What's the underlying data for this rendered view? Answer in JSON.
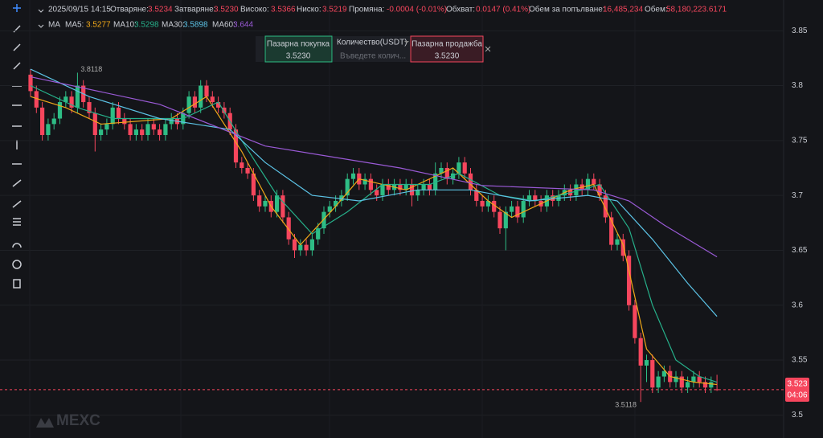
{
  "header": {
    "time": "2025/09/15 14:15",
    "fields": [
      {
        "label": "Отваряне:",
        "value": "3.5234"
      },
      {
        "label": "Затваряне:",
        "value": "3.5230"
      },
      {
        "label": "Високо:",
        "value": "3.5366"
      },
      {
        "label": "Ниско:",
        "value": "3.5219"
      },
      {
        "label": "Промяна:",
        "value": "-0.0004 (-0.01%)"
      },
      {
        "label": "Обхват:",
        "value": "0.0147 (0.41%)"
      },
      {
        "label": "Обем за попълване:",
        "value": "16,485,234"
      },
      {
        "label": "Обем:",
        "value": "58,180,223.6171"
      }
    ]
  },
  "ma_title": "MA",
  "trade_widget": {
    "buy_label": "Пазарна покупка",
    "buy_price": "3.5230",
    "qty_label": "Количество(USDT)",
    "qty_placeholder": "Въведете колич...",
    "sell_label": "Пазарна продажба",
    "sell_price": "3.5230"
  },
  "logo": "MEXC",
  "chart_data": {
    "type": "candlestick",
    "up_color": "#2ebd85",
    "down_color": "#f6465d",
    "ylim": [
      3.49,
      3.878
    ],
    "yticks": [
      3.85,
      3.8,
      3.75,
      3.7,
      3.65,
      3.6,
      3.55,
      3.5
    ],
    "grid": true,
    "candles": [
      [
        3.81,
        3.815,
        3.79,
        3.795
      ],
      [
        3.795,
        3.8,
        3.775,
        3.78
      ],
      [
        3.78,
        3.785,
        3.75,
        3.755
      ],
      [
        3.755,
        3.77,
        3.75,
        3.765
      ],
      [
        3.765,
        3.775,
        3.76,
        3.77
      ],
      [
        3.77,
        3.79,
        3.765,
        3.785
      ],
      [
        3.785,
        3.795,
        3.78,
        3.79
      ],
      [
        3.79,
        3.795,
        3.775,
        3.78
      ],
      [
        3.78,
        3.8118,
        3.775,
        3.8
      ],
      [
        3.8,
        3.805,
        3.78,
        3.785
      ],
      [
        3.785,
        3.79,
        3.77,
        3.775
      ],
      [
        3.775,
        3.78,
        3.74,
        3.755
      ],
      [
        3.755,
        3.765,
        3.75,
        3.76
      ],
      [
        3.76,
        3.77,
        3.755,
        3.765
      ],
      [
        3.765,
        3.785,
        3.76,
        3.78
      ],
      [
        3.78,
        3.785,
        3.765,
        3.77
      ],
      [
        3.77,
        3.775,
        3.76,
        3.765
      ],
      [
        3.765,
        3.77,
        3.75,
        3.755
      ],
      [
        3.755,
        3.765,
        3.75,
        3.76
      ],
      [
        3.76,
        3.765,
        3.75,
        3.755
      ],
      [
        3.755,
        3.77,
        3.75,
        3.765
      ],
      [
        3.765,
        3.77,
        3.755,
        3.76
      ],
      [
        3.76,
        3.765,
        3.75,
        3.755
      ],
      [
        3.755,
        3.77,
        3.75,
        3.765
      ],
      [
        3.765,
        3.775,
        3.76,
        3.77
      ],
      [
        3.77,
        3.775,
        3.76,
        3.765
      ],
      [
        3.765,
        3.78,
        3.76,
        3.775
      ],
      [
        3.775,
        3.795,
        3.77,
        3.79
      ],
      [
        3.79,
        3.795,
        3.775,
        3.78
      ],
      [
        3.78,
        3.805,
        3.775,
        3.8
      ],
      [
        3.8,
        3.805,
        3.785,
        3.79
      ],
      [
        3.79,
        3.795,
        3.78,
        3.785
      ],
      [
        3.785,
        3.79,
        3.775,
        3.78
      ],
      [
        3.78,
        3.785,
        3.77,
        3.775
      ],
      [
        3.775,
        3.78,
        3.755,
        3.76
      ],
      [
        3.76,
        3.765,
        3.725,
        3.73
      ],
      [
        3.73,
        3.735,
        3.72,
        3.725
      ],
      [
        3.725,
        3.73,
        3.715,
        3.72
      ],
      [
        3.72,
        3.725,
        3.695,
        3.7
      ],
      [
        3.7,
        3.705,
        3.685,
        3.69
      ],
      [
        3.69,
        3.7,
        3.685,
        3.695
      ],
      [
        3.695,
        3.7,
        3.68,
        3.685
      ],
      [
        3.685,
        3.705,
        3.68,
        3.7
      ],
      [
        3.7,
        3.705,
        3.675,
        3.68
      ],
      [
        3.68,
        3.685,
        3.655,
        3.66
      ],
      [
        3.66,
        3.665,
        3.643,
        3.65
      ],
      [
        3.65,
        3.66,
        3.645,
        3.655
      ],
      [
        3.655,
        3.66,
        3.645,
        3.65
      ],
      [
        3.65,
        3.665,
        3.645,
        3.66
      ],
      [
        3.66,
        3.675,
        3.655,
        3.67
      ],
      [
        3.67,
        3.69,
        3.665,
        3.685
      ],
      [
        3.685,
        3.695,
        3.68,
        3.69
      ],
      [
        3.69,
        3.7,
        3.685,
        3.695
      ],
      [
        3.695,
        3.705,
        3.69,
        3.7
      ],
      [
        3.7,
        3.72,
        3.695,
        3.715
      ],
      [
        3.715,
        3.725,
        3.71,
        3.72
      ],
      [
        3.72,
        3.725,
        3.705,
        3.71
      ],
      [
        3.71,
        3.72,
        3.705,
        3.715
      ],
      [
        3.715,
        3.72,
        3.7,
        3.705
      ],
      [
        3.705,
        3.71,
        3.695,
        3.7
      ],
      [
        3.7,
        3.715,
        3.695,
        3.71
      ],
      [
        3.71,
        3.715,
        3.7,
        3.705
      ],
      [
        3.705,
        3.715,
        3.7,
        3.71
      ],
      [
        3.71,
        3.715,
        3.7,
        3.705
      ],
      [
        3.705,
        3.715,
        3.7,
        3.71
      ],
      [
        3.71,
        3.715,
        3.69,
        3.7
      ],
      [
        3.7,
        3.71,
        3.695,
        3.705
      ],
      [
        3.705,
        3.715,
        3.7,
        3.71
      ],
      [
        3.71,
        3.715,
        3.7,
        3.705
      ],
      [
        3.705,
        3.73,
        3.7,
        3.72
      ],
      [
        3.72,
        3.73,
        3.715,
        3.725
      ],
      [
        3.725,
        3.73,
        3.71,
        3.715
      ],
      [
        3.715,
        3.725,
        3.71,
        3.72
      ],
      [
        3.72,
        3.735,
        3.715,
        3.73
      ],
      [
        3.73,
        3.735,
        3.715,
        3.72
      ],
      [
        3.72,
        3.725,
        3.7,
        3.705
      ],
      [
        3.705,
        3.71,
        3.69,
        3.695
      ],
      [
        3.695,
        3.7,
        3.685,
        3.69
      ],
      [
        3.69,
        3.7,
        3.685,
        3.695
      ],
      [
        3.695,
        3.7,
        3.68,
        3.685
      ],
      [
        3.685,
        3.69,
        3.665,
        3.67
      ],
      [
        3.67,
        3.69,
        3.65,
        3.685
      ],
      [
        3.685,
        3.695,
        3.68,
        3.69
      ],
      [
        3.69,
        3.695,
        3.675,
        3.68
      ],
      [
        3.68,
        3.7,
        3.675,
        3.695
      ],
      [
        3.695,
        3.705,
        3.69,
        3.7
      ],
      [
        3.7,
        3.705,
        3.69,
        3.695
      ],
      [
        3.695,
        3.7,
        3.685,
        3.69
      ],
      [
        3.69,
        3.705,
        3.685,
        3.7
      ],
      [
        3.7,
        3.705,
        3.69,
        3.695
      ],
      [
        3.695,
        3.705,
        3.69,
        3.7
      ],
      [
        3.7,
        3.71,
        3.695,
        3.705
      ],
      [
        3.705,
        3.71,
        3.695,
        3.7
      ],
      [
        3.7,
        3.715,
        3.695,
        3.71
      ],
      [
        3.71,
        3.715,
        3.7,
        3.705
      ],
      [
        3.705,
        3.72,
        3.7,
        3.715
      ],
      [
        3.715,
        3.72,
        3.705,
        3.71
      ],
      [
        3.71,
        3.715,
        3.695,
        3.7
      ],
      [
        3.7,
        3.705,
        3.675,
        3.68
      ],
      [
        3.68,
        3.685,
        3.65,
        3.655
      ],
      [
        3.655,
        3.665,
        3.65,
        3.66
      ],
      [
        3.66,
        3.665,
        3.64,
        3.645
      ],
      [
        3.645,
        3.65,
        3.595,
        3.6
      ],
      [
        3.6,
        3.605,
        3.565,
        3.57
      ],
      [
        3.57,
        3.575,
        3.5118,
        3.545
      ],
      [
        3.545,
        3.555,
        3.53,
        3.55
      ],
      [
        3.55,
        3.555,
        3.52,
        3.525
      ],
      [
        3.525,
        3.54,
        3.52,
        3.535
      ],
      [
        3.535,
        3.545,
        3.53,
        3.54
      ],
      [
        3.54,
        3.545,
        3.525,
        3.53
      ],
      [
        3.53,
        3.54,
        3.525,
        3.535
      ],
      [
        3.535,
        3.54,
        3.52,
        3.525
      ],
      [
        3.525,
        3.535,
        3.52,
        3.53
      ],
      [
        3.53,
        3.54,
        3.525,
        3.535
      ],
      [
        3.535,
        3.54,
        3.525,
        3.53
      ],
      [
        3.53,
        3.535,
        3.52,
        3.525
      ],
      [
        3.525,
        3.535,
        3.52,
        3.53
      ],
      [
        3.5234,
        3.5366,
        3.5219,
        3.523
      ]
    ],
    "ma": [
      {
        "name": "MA5:",
        "value": "3.5277",
        "color": "#f0a818",
        "points": [
          [
            0,
            3.79
          ],
          [
            6,
            3.78
          ],
          [
            12,
            3.765
          ],
          [
            24,
            3.77
          ],
          [
            30,
            3.79
          ],
          [
            36,
            3.74
          ],
          [
            41,
            3.69
          ],
          [
            46,
            3.655
          ],
          [
            52,
            3.69
          ],
          [
            56,
            3.715
          ],
          [
            64,
            3.705
          ],
          [
            72,
            3.725
          ],
          [
            78,
            3.695
          ],
          [
            82,
            3.68
          ],
          [
            92,
            3.705
          ],
          [
            96,
            3.71
          ],
          [
            101,
            3.655
          ],
          [
            105,
            3.56
          ],
          [
            109,
            3.535
          ],
          [
            113,
            3.53
          ],
          [
            117,
            3.5277
          ]
        ]
      },
      {
        "name": "MA10:",
        "value": "3.5298",
        "color": "#26b08a",
        "points": [
          [
            0,
            3.8
          ],
          [
            8,
            3.78
          ],
          [
            14,
            3.77
          ],
          [
            26,
            3.77
          ],
          [
            32,
            3.785
          ],
          [
            36,
            3.75
          ],
          [
            42,
            3.7
          ],
          [
            48,
            3.665
          ],
          [
            54,
            3.685
          ],
          [
            60,
            3.71
          ],
          [
            68,
            3.71
          ],
          [
            73,
            3.72
          ],
          [
            80,
            3.7
          ],
          [
            86,
            3.695
          ],
          [
            94,
            3.705
          ],
          [
            97,
            3.71
          ],
          [
            102,
            3.67
          ],
          [
            106,
            3.6
          ],
          [
            110,
            3.55
          ],
          [
            114,
            3.535
          ],
          [
            117,
            3.5298
          ]
        ]
      },
      {
        "name": "MA30:",
        "value": "3.5898",
        "color": "#5cc3e6",
        "points": [
          [
            0,
            3.815
          ],
          [
            10,
            3.79
          ],
          [
            22,
            3.77
          ],
          [
            34,
            3.76
          ],
          [
            40,
            3.73
          ],
          [
            48,
            3.7
          ],
          [
            56,
            3.695
          ],
          [
            66,
            3.705
          ],
          [
            75,
            3.705
          ],
          [
            85,
            3.695
          ],
          [
            95,
            3.7
          ],
          [
            100,
            3.695
          ],
          [
            106,
            3.66
          ],
          [
            112,
            3.62
          ],
          [
            117,
            3.5898
          ]
        ]
      },
      {
        "name": "MA60:",
        "value": "3.644",
        "color": "#9a5ad6",
        "points": [
          [
            0,
            3.808
          ],
          [
            22,
            3.783
          ],
          [
            40,
            3.745
          ],
          [
            63,
            3.725
          ],
          [
            77,
            3.709
          ],
          [
            96,
            3.705
          ],
          [
            102,
            3.695
          ],
          [
            108,
            3.673
          ],
          [
            117,
            3.644
          ]
        ]
      }
    ],
    "annotations": [
      {
        "text": "3.8118",
        "candle": 8
      },
      {
        "text": "3.5118",
        "candle": 104
      }
    ],
    "price_tag": {
      "price": "3.523",
      "countdown": "04:06"
    }
  }
}
